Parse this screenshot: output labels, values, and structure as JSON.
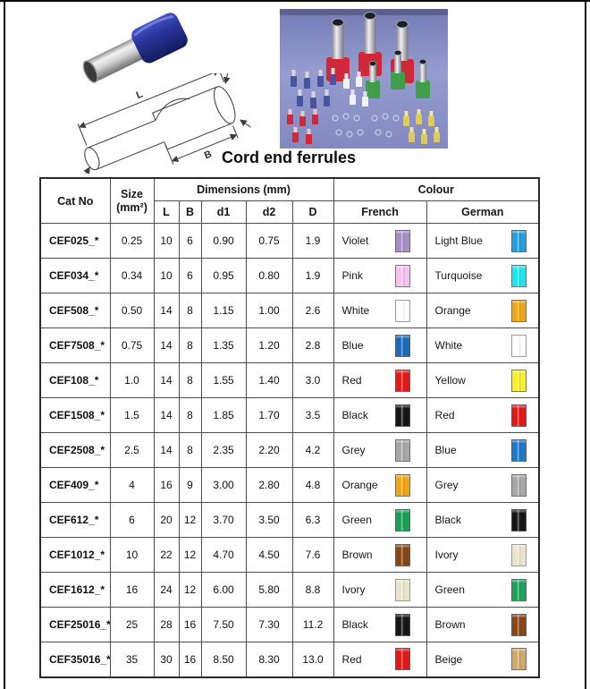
{
  "page": {
    "title": "Cord end ferrules"
  },
  "drawing_labels": {
    "l": "L",
    "d_big": "D",
    "b": "B",
    "d2": "d2",
    "d1": "d1"
  },
  "table": {
    "headers": {
      "cat_no": "Cat No",
      "size_line1": "Size",
      "size_line2": "(mm²)",
      "dimensions": "Dimensions (mm)",
      "dim_l": "L",
      "dim_b": "B",
      "dim_d1": "d1",
      "dim_d2": "d2",
      "dim_d": "D",
      "colour": "Colour",
      "french": "French",
      "german": "German"
    },
    "rows": [
      {
        "cat_no": "CEF025_*",
        "size": "0.25",
        "L": "10",
        "B": "6",
        "d1": "0.90",
        "d2": "0.75",
        "D": "1.9",
        "french": {
          "label": "Violet",
          "color": "#a78fc6"
        },
        "german": {
          "label": "Light Blue",
          "color": "#249fdc"
        }
      },
      {
        "cat_no": "CEF034_*",
        "size": "0.34",
        "L": "10",
        "B": "6",
        "d1": "0.95",
        "d2": "0.80",
        "D": "1.9",
        "french": {
          "label": "Pink",
          "color": "#f6c2ee"
        },
        "german": {
          "label": "Turquoise",
          "color": "#1fe6ee"
        }
      },
      {
        "cat_no": "CEF508_*",
        "size": "0.50",
        "L": "14",
        "B": "8",
        "d1": "1.15",
        "d2": "1.00",
        "D": "2.6",
        "french": {
          "label": "White",
          "color": "#ffffff"
        },
        "german": {
          "label": "Orange",
          "color": "#f0a513"
        }
      },
      {
        "cat_no": "CEF7508_*",
        "size": "0.75",
        "L": "14",
        "B": "8",
        "d1": "1.35",
        "d2": "1.20",
        "D": "2.8",
        "french": {
          "label": "Blue",
          "color": "#1a6cb8"
        },
        "german": {
          "label": "White",
          "color": "#ffffff"
        }
      },
      {
        "cat_no": "CEF108_*",
        "size": "1.0",
        "L": "14",
        "B": "8",
        "d1": "1.55",
        "d2": "1.40",
        "D": "3.0",
        "french": {
          "label": "Red",
          "color": "#e81717"
        },
        "german": {
          "label": "Yellow",
          "color": "#f8ef2d"
        }
      },
      {
        "cat_no": "CEF1508_*",
        "size": "1.5",
        "L": "14",
        "B": "8",
        "d1": "1.85",
        "d2": "1.70",
        "D": "3.5",
        "french": {
          "label": "Black",
          "color": "#161616"
        },
        "german": {
          "label": "Red",
          "color": "#e81717"
        }
      },
      {
        "cat_no": "CEF2508_*",
        "size": "2.5",
        "L": "14",
        "B": "8",
        "d1": "2.35",
        "d2": "2.20",
        "D": "4.2",
        "french": {
          "label": "Grey",
          "color": "#a7a7a7"
        },
        "german": {
          "label": "Blue",
          "color": "#1f78c8"
        }
      },
      {
        "cat_no": "CEF409_*",
        "size": "4",
        "L": "16",
        "B": "9",
        "d1": "3.00",
        "d2": "2.80",
        "D": "4.8",
        "french": {
          "label": "Orange",
          "color": "#f0a513"
        },
        "german": {
          "label": "Grey",
          "color": "#a7a7a7"
        }
      },
      {
        "cat_no": "CEF612_*",
        "size": "6",
        "L": "20",
        "B": "12",
        "d1": "3.70",
        "d2": "3.50",
        "D": "6.3",
        "french": {
          "label": "Green",
          "color": "#18a156"
        },
        "german": {
          "label": "Black",
          "color": "#161616"
        }
      },
      {
        "cat_no": "CEF1012_*",
        "size": "10",
        "L": "22",
        "B": "12",
        "d1": "4.70",
        "d2": "4.50",
        "D": "7.6",
        "french": {
          "label": "Brown",
          "color": "#8a4716"
        },
        "german": {
          "label": "Ivory",
          "color": "#e9e4cb"
        }
      },
      {
        "cat_no": "CEF1612_*",
        "size": "16",
        "L": "24",
        "B": "12",
        "d1": "6.00",
        "d2": "5.80",
        "D": "8.8",
        "french": {
          "label": "Ivory",
          "color": "#e9e4cb"
        },
        "german": {
          "label": "Green",
          "color": "#1ca25b"
        }
      },
      {
        "cat_no": "CEF25016_*",
        "size": "25",
        "L": "28",
        "B": "16",
        "d1": "7.50",
        "d2": "7.30",
        "D": "11.2",
        "french": {
          "label": "Black",
          "color": "#161616"
        },
        "german": {
          "label": "Brown",
          "color": "#8a4716"
        }
      },
      {
        "cat_no": "CEF35016_*",
        "size": "35",
        "L": "30",
        "B": "16",
        "d1": "8.50",
        "d2": "8.30",
        "D": "13.0",
        "french": {
          "label": "Red",
          "color": "#e81717"
        },
        "german": {
          "label": "Beige",
          "color": "#d0a869"
        }
      }
    ]
  }
}
